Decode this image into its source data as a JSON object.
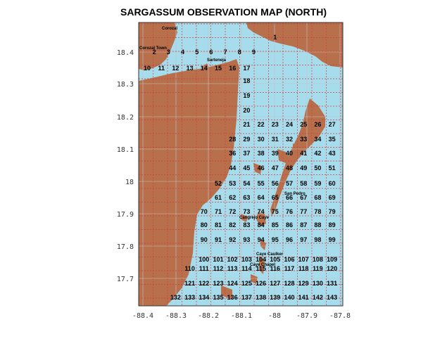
{
  "title": "SARGASSUM OBSERVATION MAP (NORTH)",
  "colors": {
    "sea": "#a6dcec",
    "land": "#b8704c",
    "grid_red": "#d23c3c",
    "grid_gray": "#c4c4c4"
  },
  "axes": {
    "x_ticks": [
      "-88.4",
      "-88.3",
      "-88.2",
      "-88.1",
      "-88",
      "-87.9",
      "-87.8"
    ],
    "y_ticks": [
      "18.4",
      "18.3",
      "18.2",
      "18.1",
      "18",
      "17.9",
      "17.8",
      "17.7"
    ]
  },
  "places": [
    "Corozal",
    "Corozal Town",
    "Sarteneja",
    "San Pedro",
    "Cangrejo Caye",
    "Caye Caulker",
    "Caye Chapel"
  ],
  "cells": [
    "1",
    "2",
    "3",
    "4",
    "5",
    "6",
    "7",
    "8",
    "9",
    "10",
    "11",
    "12",
    "13",
    "14",
    "15",
    "16",
    "17",
    "18",
    "19",
    "20",
    "21",
    "22",
    "23",
    "24",
    "25",
    "26",
    "27",
    "28",
    "29",
    "30",
    "31",
    "32",
    "33",
    "34",
    "35",
    "36",
    "37",
    "38",
    "39",
    "40",
    "41",
    "42",
    "43",
    "44",
    "45",
    "46",
    "47",
    "48",
    "49",
    "50",
    "51",
    "52",
    "53",
    "54",
    "55",
    "56",
    "57",
    "58",
    "59",
    "60",
    "61",
    "62",
    "63",
    "64",
    "65",
    "66",
    "67",
    "68",
    "69",
    "70",
    "71",
    "72",
    "73",
    "74",
    "75",
    "76",
    "77",
    "78",
    "79",
    "80",
    "81",
    "82",
    "83",
    "84",
    "85",
    "86",
    "87",
    "88",
    "89",
    "90",
    "91",
    "92",
    "93",
    "94",
    "95",
    "96",
    "97",
    "98",
    "99",
    "100",
    "101",
    "102",
    "103",
    "104",
    "105",
    "106",
    "107",
    "108",
    "109",
    "110",
    "111",
    "112",
    "113",
    "114",
    "115",
    "116",
    "117",
    "118",
    "119",
    "120",
    "121",
    "122",
    "123",
    "124",
    "125",
    "126",
    "127",
    "128",
    "129",
    "130",
    "131",
    "132",
    "133",
    "134",
    "135",
    "136",
    "137",
    "138",
    "139",
    "140",
    "141",
    "142",
    "143"
  ]
}
